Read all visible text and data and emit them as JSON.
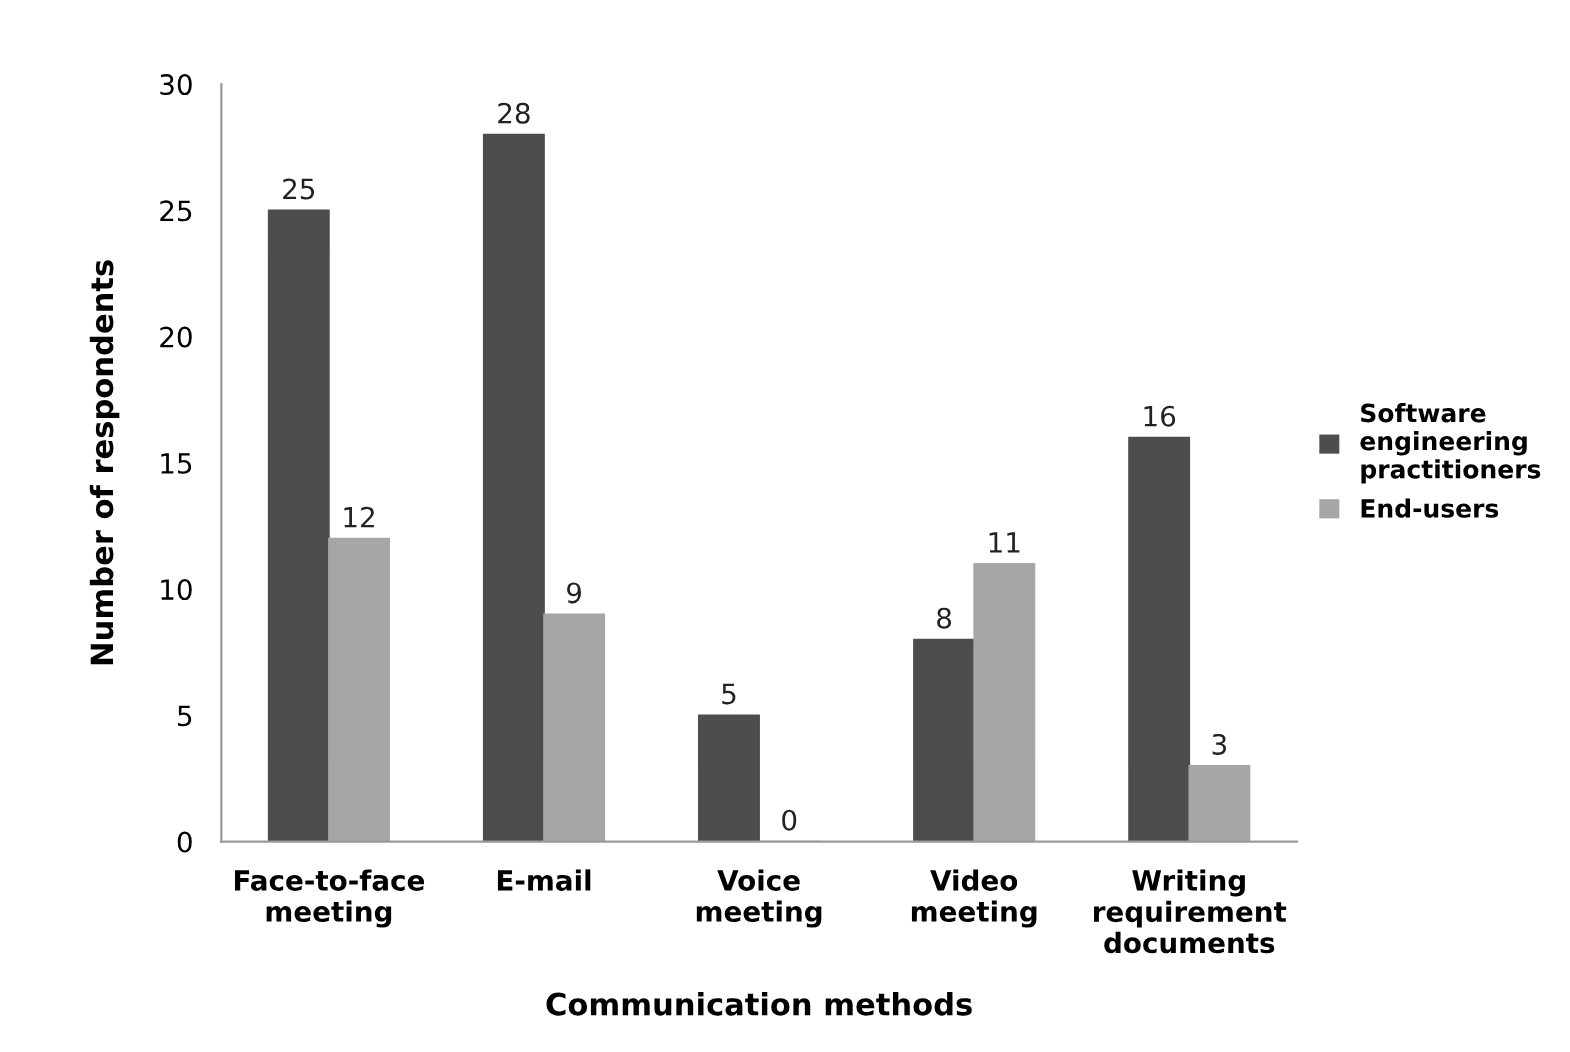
{
  "chart_data": {
    "type": "bar",
    "xlabel": "Communication methods",
    "ylabel": "Number of respondents",
    "categories": [
      "Face-to-face\nmeeting",
      "E-mail",
      "Voice\nmeeting",
      "Video\nmeeting",
      "Writing\nrequirement\ndocuments"
    ],
    "series": [
      {
        "name": "Software\nengineering\npractitioners",
        "color": "#4d4d4d",
        "values": [
          25,
          28,
          5,
          8,
          16
        ]
      },
      {
        "name": "End-users",
        "color": "#a6a6a6",
        "values": [
          12,
          9,
          0,
          11,
          3
        ]
      }
    ],
    "ylim": [
      0,
      30
    ],
    "yticks": [
      0,
      5,
      10,
      15,
      20,
      25,
      30
    ],
    "data_labels": true,
    "legend": "right",
    "grid": false
  }
}
